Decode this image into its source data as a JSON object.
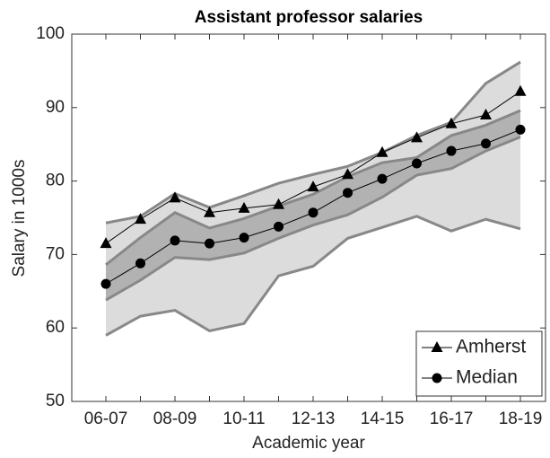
{
  "chart_data": {
    "type": "line",
    "title": "Assistant professor salaries",
    "xlabel": "Academic year",
    "ylabel": "Salary in 1000s",
    "categories": [
      "06-07",
      null,
      "08-09",
      null,
      "10-11",
      null,
      "12-13",
      null,
      "14-15",
      null,
      "16-17",
      null,
      "18-19"
    ],
    "ylim": [
      50,
      100
    ],
    "yticks": [
      50,
      60,
      70,
      80,
      90,
      100
    ],
    "bands": [
      {
        "color": "#dcdcdc",
        "edge": "#888888",
        "upper": [
          74.3,
          75.2,
          78.3,
          76.4,
          78.0,
          79.7,
          80.9,
          82.0,
          83.9,
          86.2,
          88.0,
          93.3,
          96.2
        ],
        "lower": [
          59.0,
          61.6,
          62.4,
          59.6,
          60.6,
          67.1,
          68.4,
          72.2,
          73.7,
          75.2,
          73.2,
          74.8,
          73.5
        ]
      },
      {
        "color": "#b2b2b2",
        "edge": "#888888",
        "upper": [
          68.6,
          72.3,
          75.7,
          73.6,
          74.9,
          76.6,
          78.2,
          80.6,
          82.5,
          83.2,
          86.2,
          87.6,
          89.6
        ],
        "lower": [
          63.8,
          66.5,
          69.6,
          69.3,
          70.2,
          72.2,
          74.0,
          75.4,
          77.8,
          80.8,
          81.7,
          84.1,
          86.0
        ]
      }
    ],
    "series": [
      {
        "name": "Amherst",
        "color": "#000000",
        "marker": "triangle",
        "values": [
          71.5,
          74.8,
          77.7,
          75.7,
          76.3,
          76.8,
          79.2,
          80.9,
          83.9,
          85.9,
          87.8,
          89.0,
          92.2
        ]
      },
      {
        "name": "Median",
        "color": "#000000",
        "marker": "circle",
        "values": [
          66.0,
          68.8,
          71.9,
          71.5,
          72.3,
          73.8,
          75.7,
          78.4,
          80.3,
          82.4,
          84.1,
          85.1,
          87.0
        ]
      }
    ],
    "legend": "lower right"
  }
}
